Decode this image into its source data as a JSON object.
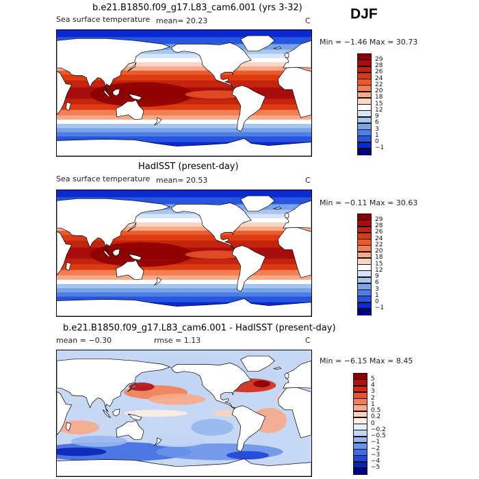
{
  "season": "DJF",
  "panels": [
    {
      "title": "b.e21.B1850.f09_g17.L83_cam6.001 (yrs 3-32)",
      "variable": "Sea surface temperature",
      "stat1": "mean=  20.23",
      "stat2": "",
      "units": "C",
      "minmax": "Min =  −1.46 Max =  30.73",
      "kind": "model",
      "colorbar": {
        "labels": [
          "29",
          "28",
          "26",
          "24",
          "22",
          "20",
          "18",
          "15",
          "12",
          "9",
          "6",
          "3",
          "1",
          "0",
          "−1"
        ],
        "colors": [
          "#8b0000",
          "#a80d0d",
          "#c4230e",
          "#dc3a10",
          "#ea5a2a",
          "#f27e54",
          "#f7aa8a",
          "#fbd6c2",
          "#ffffff",
          "#d6e5f8",
          "#a8c6f0",
          "#7aa4ea",
          "#4d7fe6",
          "#2656e0",
          "#0a2ad0",
          "#00008b"
        ]
      }
    },
    {
      "title": "HadISST (present-day)",
      "variable": "Sea surface temperature",
      "stat1": "mean=  20.53",
      "stat2": "",
      "units": "C",
      "minmax": "Min =  −0.11 Max =  30.63",
      "kind": "obs",
      "colorbar": {
        "labels": [
          "29",
          "28",
          "26",
          "24",
          "22",
          "20",
          "18",
          "15",
          "12",
          "9",
          "6",
          "3",
          "1",
          "0",
          "−1"
        ],
        "colors": [
          "#8b0000",
          "#a80d0d",
          "#c4230e",
          "#dc3a10",
          "#ea5a2a",
          "#f27e54",
          "#f7aa8a",
          "#fbd6c2",
          "#ffffff",
          "#d6e5f8",
          "#a8c6f0",
          "#7aa4ea",
          "#4d7fe6",
          "#2656e0",
          "#0a2ad0",
          "#00008b"
        ]
      }
    },
    {
      "title": "b.e21.B1850.f09_g17.L83_cam6.001 - HadISST (present-day)",
      "variable": "",
      "stat1": "mean =  −0.30",
      "stat2": "rmse =   1.13",
      "units": "C",
      "minmax": "Min =  −6.15 Max =   8.45",
      "kind": "diff",
      "colorbar": {
        "labels": [
          "5",
          "4",
          "3",
          "2",
          "1",
          "0.5",
          "0.2",
          "0",
          "−0.2",
          "−0.5",
          "−1",
          "−2",
          "−3",
          "−4",
          "−5"
        ],
        "colors": [
          "#8b0000",
          "#b01212",
          "#d42a14",
          "#ea5530",
          "#f27e54",
          "#f8aa8a",
          "#fbd2bd",
          "#fdeee4",
          "#e4edfb",
          "#c2d5f4",
          "#96b7ee",
          "#6a94e8",
          "#3d6ce2",
          "#1f46d6",
          "#0a22b8",
          "#00008b"
        ]
      }
    }
  ]
}
